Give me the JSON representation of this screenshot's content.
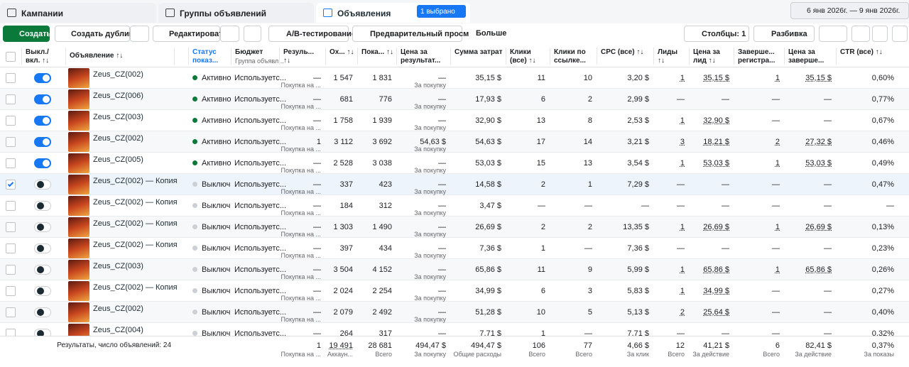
{
  "tabs": {
    "campaigns": "Кампании",
    "ad_sets": "Группы объявлений",
    "ads": "Объявления",
    "selected": "1 выбрано",
    "date_range": "6 янв 2026г. — 9 янв 2026г."
  },
  "toolbar": {
    "create": "Создать",
    "duplicate": "Создать дубликат",
    "edit": "Редактировать",
    "ab_test": "A/B-тестирование",
    "preview": "Предварительный просмотр",
    "more": "Больше",
    "columns": "Столбцы: 1",
    "breakdown": "Разбивка"
  },
  "table": {
    "headers": {
      "toggle": "Выкл./ вкл. ↑↓",
      "name": "Объявление ↑↓",
      "status": "Статус показ...",
      "budget": "Бюджет",
      "budget_sub": "Группа объявл...",
      "result": "Резуль... ↑↓",
      "reach": "Ох... ↑↓",
      "impressions": "Пока... ↑↓",
      "cost_per_result": "Цена за результат...",
      "spend": "Сумма затрат",
      "clicks": "Клики (все) ↑↓",
      "link_clicks": "Клики по ссылке...",
      "cpc": "CPC (все) ↑↓",
      "leads": "Лиды ↑↓",
      "cpl": "Цена за лид ↑↓",
      "registrations": "Заверше... регистра...",
      "cost_per_registration": "Цена за заверше...",
      "ctr": "CTR (все) ↑↓"
    },
    "rows": [
      {
        "selected": false,
        "active": true,
        "name": "Zeus_CZ(002)",
        "status": "Активно",
        "budget": "Используетс...",
        "result": "—",
        "result_sub": "Покупка на ...",
        "reach": "1 547",
        "impressions": "1 831",
        "cost_per_result": "—",
        "cost_per_result_sub": "За покупку",
        "spend": "35,15 $",
        "clicks": "11",
        "link_clicks": "10",
        "cpc": "3,20 $",
        "leads": "1",
        "cpl": "35,15 $",
        "registrations": "1",
        "cost_per_registration": "35,15 $",
        "ctr": "0,60%"
      },
      {
        "selected": false,
        "active": true,
        "name": "Zeus_CZ(006)",
        "status": "Активно",
        "budget": "Используетс...",
        "result": "—",
        "result_sub": "Покупка на ...",
        "reach": "681",
        "impressions": "776",
        "cost_per_result": "—",
        "cost_per_result_sub": "За покупку",
        "spend": "17,93 $",
        "clicks": "6",
        "link_clicks": "2",
        "cpc": "2,99 $",
        "leads": "—",
        "cpl": "—",
        "registrations": "—",
        "cost_per_registration": "—",
        "ctr": "0,77%"
      },
      {
        "selected": false,
        "active": true,
        "name": "Zeus_CZ(003)",
        "status": "Активно",
        "budget": "Используетс...",
        "result": "—",
        "result_sub": "Покупка на ...",
        "reach": "1 758",
        "impressions": "1 939",
        "cost_per_result": "—",
        "cost_per_result_sub": "За покупку",
        "spend": "32,90 $",
        "clicks": "13",
        "link_clicks": "8",
        "cpc": "2,53 $",
        "leads": "1",
        "cpl": "32,90 $",
        "registrations": "—",
        "cost_per_registration": "—",
        "ctr": "0,67%"
      },
      {
        "selected": false,
        "active": true,
        "name": "Zeus_CZ(002)",
        "status": "Активно",
        "budget": "Используетс...",
        "result": "1",
        "result_sub": "Покупка на ...",
        "reach": "3 112",
        "impressions": "3 692",
        "cost_per_result": "54,63 $",
        "cost_per_result_sub": "За покупку",
        "spend": "54,63 $",
        "clicks": "17",
        "link_clicks": "14",
        "cpc": "3,21 $",
        "leads": "3",
        "cpl": "18,21 $",
        "registrations": "2",
        "cost_per_registration": "27,32 $",
        "ctr": "0,46%"
      },
      {
        "selected": false,
        "active": true,
        "name": "Zeus_CZ(005)",
        "status": "Активно",
        "budget": "Используетс...",
        "result": "—",
        "result_sub": "Покупка на ...",
        "reach": "2 528",
        "impressions": "3 038",
        "cost_per_result": "—",
        "cost_per_result_sub": "За покупку",
        "spend": "53,03 $",
        "clicks": "15",
        "link_clicks": "13",
        "cpc": "3,54 $",
        "leads": "1",
        "cpl": "53,03 $",
        "registrations": "1",
        "cost_per_registration": "53,03 $",
        "ctr": "0,49%"
      },
      {
        "selected": true,
        "active": false,
        "name": "Zeus_CZ(002) — Копия",
        "status": "Выключ",
        "budget": "Используетс...",
        "result": "—",
        "result_sub": "Покупка на ...",
        "reach": "337",
        "impressions": "423",
        "cost_per_result": "—",
        "cost_per_result_sub": "За покупку",
        "spend": "14,58 $",
        "clicks": "2",
        "link_clicks": "1",
        "cpc": "7,29 $",
        "leads": "—",
        "cpl": "—",
        "registrations": "—",
        "cost_per_registration": "—",
        "ctr": "0,47%"
      },
      {
        "selected": false,
        "active": false,
        "name": "Zeus_CZ(002) — Копия",
        "status": "Выключ",
        "budget": "Используетс...",
        "result": "—",
        "result_sub": "Покупка на ...",
        "reach": "184",
        "impressions": "312",
        "cost_per_result": "—",
        "cost_per_result_sub": "За покупку",
        "spend": "3,47 $",
        "clicks": "—",
        "link_clicks": "—",
        "cpc": "—",
        "leads": "—",
        "cpl": "—",
        "registrations": "—",
        "cost_per_registration": "—",
        "ctr": "—"
      },
      {
        "selected": false,
        "active": false,
        "name": "Zeus_CZ(002) — Копия",
        "status": "Выключ",
        "budget": "Используетс...",
        "result": "—",
        "result_sub": "Покупка на ...",
        "reach": "1 303",
        "impressions": "1 490",
        "cost_per_result": "—",
        "cost_per_result_sub": "За покупку",
        "spend": "26,69 $",
        "clicks": "2",
        "link_clicks": "2",
        "cpc": "13,35 $",
        "leads": "1",
        "cpl": "26,69 $",
        "registrations": "1",
        "cost_per_registration": "26,69 $",
        "ctr": "0,13%"
      },
      {
        "selected": false,
        "active": false,
        "name": "Zeus_CZ(002) — Копия",
        "status": "Выключ",
        "budget": "Используетс...",
        "result": "—",
        "result_sub": "Покупка на ...",
        "reach": "397",
        "impressions": "434",
        "cost_per_result": "—",
        "cost_per_result_sub": "За покупку",
        "spend": "7,36 $",
        "clicks": "1",
        "link_clicks": "—",
        "cpc": "7,36 $",
        "leads": "—",
        "cpl": "—",
        "registrations": "—",
        "cost_per_registration": "—",
        "ctr": "0,23%"
      },
      {
        "selected": false,
        "active": false,
        "name": "Zeus_CZ(003)",
        "status": "Выключ",
        "budget": "Используетс...",
        "result": "—",
        "result_sub": "Покупка на ...",
        "reach": "3 504",
        "impressions": "4 152",
        "cost_per_result": "—",
        "cost_per_result_sub": "За покупку",
        "spend": "65,86 $",
        "clicks": "11",
        "link_clicks": "9",
        "cpc": "5,99 $",
        "leads": "1",
        "cpl": "65,86 $",
        "registrations": "1",
        "cost_per_registration": "65,86 $",
        "ctr": "0,26%"
      },
      {
        "selected": false,
        "active": false,
        "name": "Zeus_CZ(002) — Копия",
        "status": "Выключ",
        "budget": "Используетс...",
        "result": "—",
        "result_sub": "Покупка на ...",
        "reach": "2 024",
        "impressions": "2 254",
        "cost_per_result": "—",
        "cost_per_result_sub": "За покупку",
        "spend": "34,99 $",
        "clicks": "6",
        "link_clicks": "3",
        "cpc": "5,83 $",
        "leads": "1",
        "cpl": "34,99 $",
        "registrations": "—",
        "cost_per_registration": "—",
        "ctr": "0,27%"
      },
      {
        "selected": false,
        "active": false,
        "name": "Zeus_CZ(002)",
        "status": "Выключ",
        "budget": "Используетс...",
        "result": "—",
        "result_sub": "Покупка на ...",
        "reach": "2 079",
        "impressions": "2 492",
        "cost_per_result": "—",
        "cost_per_result_sub": "За покупку",
        "spend": "51,28 $",
        "clicks": "10",
        "link_clicks": "5",
        "cpc": "5,13 $",
        "leads": "2",
        "cpl": "25,64 $",
        "registrations": "—",
        "cost_per_registration": "—",
        "ctr": "0,40%"
      },
      {
        "selected": false,
        "active": false,
        "name": "Zeus_CZ(004)",
        "status": "Выключ",
        "budget": "Используетс...",
        "result": "—",
        "result_sub": "Покупка на ...",
        "reach": "264",
        "impressions": "317",
        "cost_per_result": "—",
        "cost_per_result_sub": "За покупку",
        "spend": "7,71 $",
        "clicks": "1",
        "link_clicks": "—",
        "cpc": "7,71 $",
        "leads": "—",
        "cpl": "—",
        "registrations": "—",
        "cost_per_registration": "—",
        "ctr": "0,32%"
      }
    ],
    "footer": {
      "label": "Результаты, число объявлений: 24",
      "result": "1",
      "result_sub": "Покупка на ...",
      "reach": "19 491",
      "reach_sub": "Аккаун...",
      "impressions": "28 681",
      "impressions_sub": "Всего",
      "cost_per_result": "494,47 $",
      "cost_per_result_sub": "За покупку",
      "spend": "494,47 $",
      "spend_sub": "Общие расходы",
      "clicks": "106",
      "clicks_sub": "Всего",
      "link_clicks": "77",
      "link_clicks_sub": "Всего",
      "cpc": "4,66 $",
      "cpc_sub": "За клик",
      "leads": "12",
      "leads_sub": "Всего",
      "cpl": "41,21 $",
      "cpl_sub": "За действие",
      "registrations": "6",
      "registrations_sub": "Всего",
      "cost_per_registration": "82,41 $",
      "cost_per_registration_sub": "За действие",
      "ctr": "0,37%",
      "ctr_sub": "За показы"
    }
  }
}
